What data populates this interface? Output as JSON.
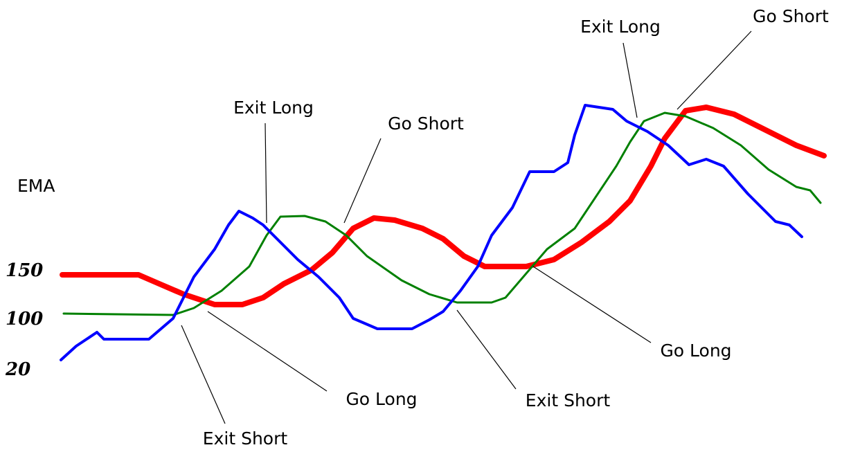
{
  "title": "EMA",
  "series_labels": [
    "150",
    "100",
    "20"
  ],
  "annotations": [
    "Exit Long",
    "Go Short",
    "Exit Long",
    "Go Short",
    "Go Long",
    "Exit Short",
    "Go Long",
    "Exit Short"
  ]
}
